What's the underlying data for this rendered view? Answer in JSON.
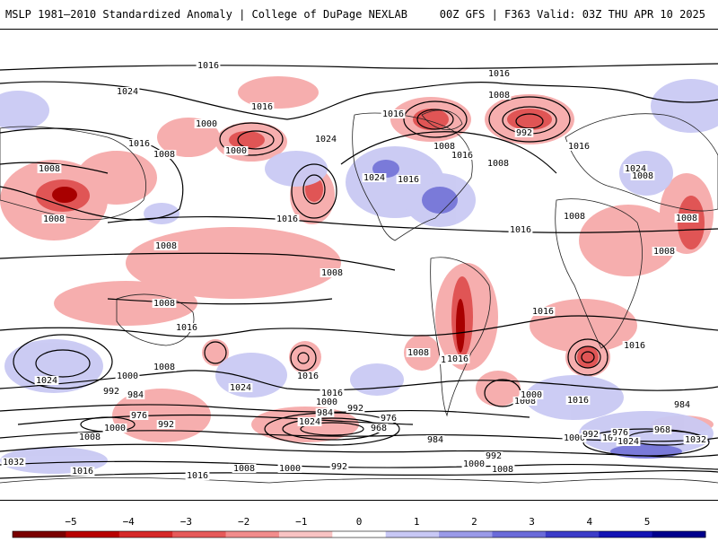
{
  "header": {
    "title": "MSLP 1981–2010 Standardized Anomaly | College of DuPage NEXLAB",
    "valid": "00Z GFS | F363 Valid: 03Z THU APR 10 2025"
  },
  "colorbar": {
    "ticks": [
      "−5",
      "−4",
      "−3",
      "−2",
      "−1",
      "0",
      "1",
      "2",
      "3",
      "4",
      "5"
    ],
    "colors": [
      "#7a0000",
      "#b80000",
      "#d62828",
      "#e65a5a",
      "#f28c8c",
      "#f9c3c3",
      "#ffffff",
      "#c8c8f5",
      "#9a9ae8",
      "#6b6bd9",
      "#3c3cc8",
      "#1414b4",
      "#00008c"
    ]
  },
  "isobars": [
    {
      "text": "1016"
    },
    {
      "text": "1016"
    },
    {
      "text": "1024"
    },
    {
      "text": "1016"
    },
    {
      "text": "1008"
    },
    {
      "text": "1016"
    },
    {
      "text": "1008"
    },
    {
      "text": "1000"
    },
    {
      "text": "1008"
    },
    {
      "text": "1008"
    },
    {
      "text": "1016"
    },
    {
      "text": "1008"
    },
    {
      "text": "1000"
    },
    {
      "text": "992"
    },
    {
      "text": "1016"
    },
    {
      "text": "1024"
    },
    {
      "text": "1016"
    },
    {
      "text": "1024"
    },
    {
      "text": "1016"
    },
    {
      "text": "1008"
    },
    {
      "text": "1024"
    },
    {
      "text": "1016"
    },
    {
      "text": "1008"
    },
    {
      "text": "1016"
    },
    {
      "text": "1008"
    },
    {
      "text": "1008"
    },
    {
      "text": "1008"
    },
    {
      "text": "1008"
    },
    {
      "text": "1008"
    },
    {
      "text": "1008"
    },
    {
      "text": "1016"
    },
    {
      "text": "1008"
    },
    {
      "text": "1024"
    },
    {
      "text": "1016"
    },
    {
      "text": "1016"
    },
    {
      "text": "1008"
    },
    {
      "text": "1016"
    },
    {
      "text": "1016"
    },
    {
      "text": "1024"
    },
    {
      "text": "1000"
    },
    {
      "text": "992"
    },
    {
      "text": "984"
    },
    {
      "text": "1024"
    },
    {
      "text": "1016"
    },
    {
      "text": "1000"
    },
    {
      "text": "992"
    },
    {
      "text": "984"
    },
    {
      "text": "976"
    },
    {
      "text": "968"
    },
    {
      "text": "976"
    },
    {
      "text": "992"
    },
    {
      "text": "1000"
    },
    {
      "text": "1008"
    },
    {
      "text": "1032"
    },
    {
      "text": "1016"
    },
    {
      "text": "1008"
    },
    {
      "text": "1000"
    },
    {
      "text": "992"
    },
    {
      "text": "984"
    },
    {
      "text": "992"
    },
    {
      "text": "1000"
    },
    {
      "text": "1008"
    },
    {
      "text": "1000"
    },
    {
      "text": "992"
    },
    {
      "text": "1016"
    },
    {
      "text": "976"
    },
    {
      "text": "968"
    },
    {
      "text": "1024"
    },
    {
      "text": "1032"
    },
    {
      "text": "984"
    },
    {
      "text": "1016"
    },
    {
      "text": "1000"
    },
    {
      "text": "1008"
    },
    {
      "text": "1016"
    },
    {
      "text": "1016"
    }
  ]
}
